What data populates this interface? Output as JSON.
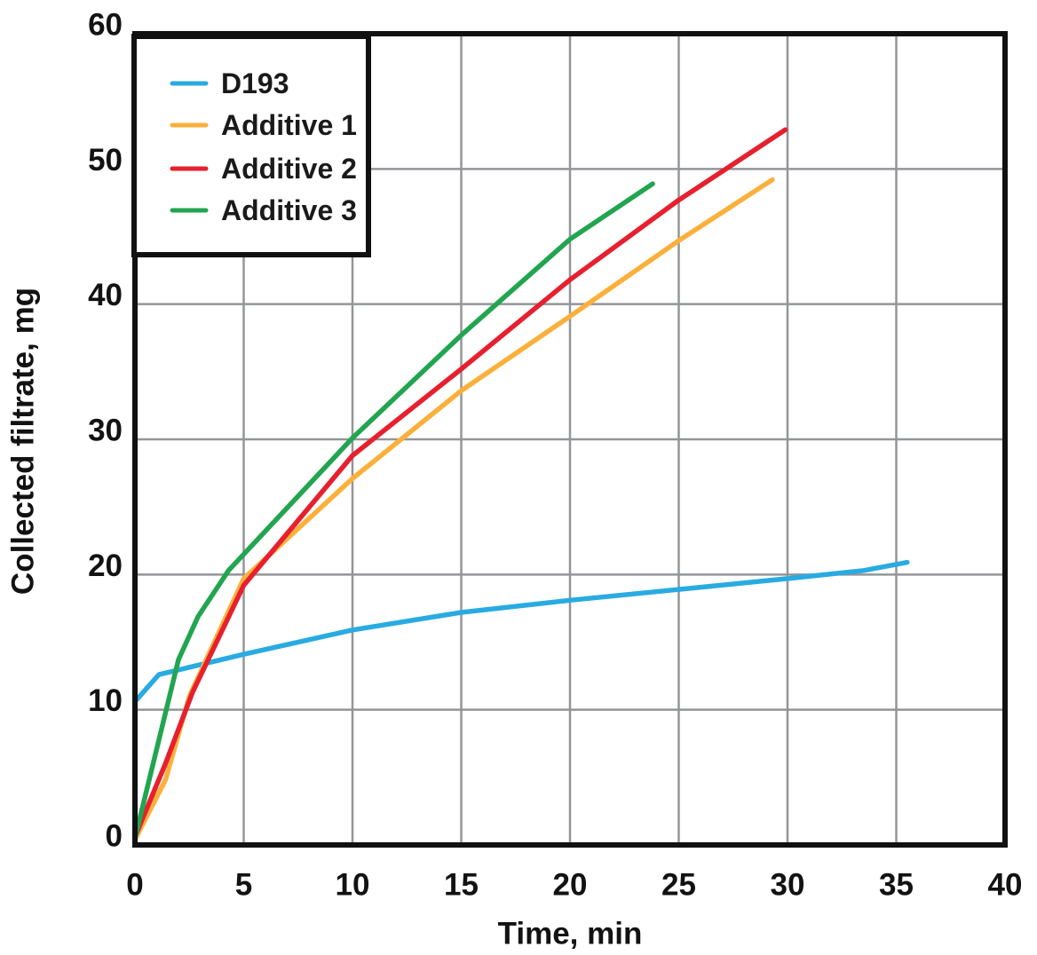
{
  "chart_data": {
    "type": "line",
    "title": "",
    "xlabel": "Time, min",
    "ylabel": "Collected filtrate, mg",
    "xlim": [
      0,
      40
    ],
    "ylim": [
      0,
      60
    ],
    "xticks": [
      0,
      5,
      10,
      15,
      20,
      25,
      30,
      35,
      40
    ],
    "yticks": [
      0,
      10,
      20,
      30,
      40,
      50,
      60
    ],
    "grid": true,
    "grid_color": "#939598",
    "frame_color": "#111111",
    "legend_position": "top-left",
    "series": [
      {
        "name": "D193",
        "color": "#29ABE2",
        "points": [
          [
            0,
            10.6
          ],
          [
            1.1,
            12.6
          ],
          [
            5,
            14.1
          ],
          [
            10,
            15.9
          ],
          [
            15,
            17.2
          ],
          [
            20,
            18.1
          ],
          [
            25,
            18.9
          ],
          [
            30,
            19.7
          ],
          [
            33.5,
            20.3
          ],
          [
            35.5,
            20.9
          ]
        ]
      },
      {
        "name": "Additive 1",
        "color": "#FBB03B",
        "points": [
          [
            0,
            0.4
          ],
          [
            1.4,
            4.8
          ],
          [
            2.5,
            11
          ],
          [
            5,
            19.7
          ],
          [
            10,
            27.1
          ],
          [
            15,
            33.6
          ],
          [
            20,
            39.1
          ],
          [
            25,
            44.7
          ],
          [
            29.3,
            49.2
          ]
        ]
      },
      {
        "name": "Additive 2",
        "color": "#E6202E",
        "points": [
          [
            0,
            0.6
          ],
          [
            1.4,
            6
          ],
          [
            2.65,
            11.3
          ],
          [
            5,
            19.2
          ],
          [
            10,
            28.8
          ],
          [
            15,
            35.2
          ],
          [
            20,
            41.8
          ],
          [
            25,
            47.7
          ],
          [
            29.9,
            52.9
          ]
        ]
      },
      {
        "name": "Additive 3",
        "color": "#22A550",
        "points": [
          [
            0,
            0.5
          ],
          [
            2,
            13.7
          ],
          [
            2.9,
            16.9
          ],
          [
            4.3,
            20.3
          ],
          [
            10,
            30.1
          ],
          [
            15,
            37.7
          ],
          [
            20,
            44.8
          ],
          [
            23.8,
            48.9
          ]
        ]
      }
    ]
  }
}
